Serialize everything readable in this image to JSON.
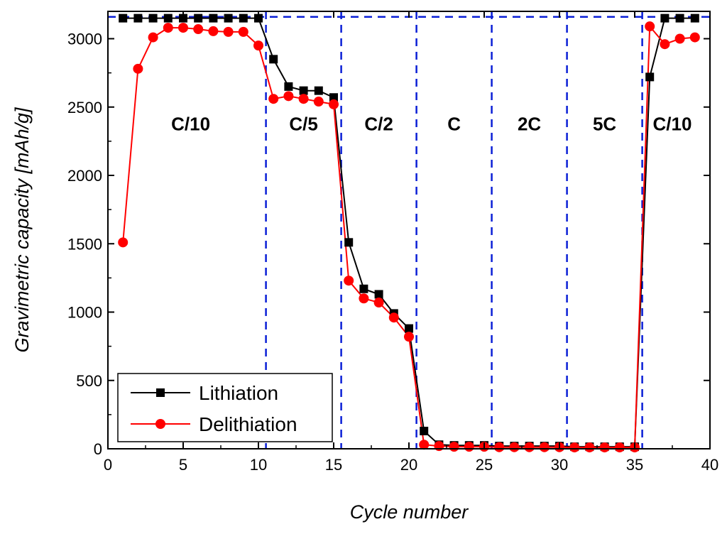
{
  "chart_data": {
    "type": "line",
    "xlabel": "Cycle number",
    "ylabel": "Gravimetric capacity [mAh/g]",
    "xlim": [
      0,
      40
    ],
    "ylim": [
      0,
      3200
    ],
    "xticks": [
      0,
      5,
      10,
      15,
      20,
      25,
      30,
      35,
      40
    ],
    "yticks": [
      0,
      500,
      1000,
      1500,
      2000,
      2500,
      3000
    ],
    "grid": false,
    "legend_position": "bottom-left",
    "reference_line_y": 3160,
    "section_boundaries": [
      10.5,
      15.5,
      20.5,
      25.5,
      30.5,
      35.5
    ],
    "rate_labels": [
      {
        "text": "C/10",
        "x": 5.5,
        "y": 2330
      },
      {
        "text": "C/5",
        "x": 13.0,
        "y": 2330
      },
      {
        "text": "C/2",
        "x": 18.0,
        "y": 2330
      },
      {
        "text": "C",
        "x": 23.0,
        "y": 2330
      },
      {
        "text": "2C",
        "x": 28.0,
        "y": 2330
      },
      {
        "text": "5C",
        "x": 33.0,
        "y": 2330
      },
      {
        "text": "C/10",
        "x": 37.5,
        "y": 2330
      }
    ],
    "series": [
      {
        "name": "Lithiation",
        "color": "#000000",
        "marker": "square",
        "x": [
          1,
          2,
          3,
          4,
          5,
          6,
          7,
          8,
          9,
          10,
          11,
          12,
          13,
          14,
          15,
          16,
          17,
          18,
          19,
          20,
          21,
          22,
          23,
          24,
          25,
          26,
          27,
          28,
          29,
          30,
          31,
          32,
          33,
          34,
          35,
          36,
          37,
          38,
          39
        ],
        "values": [
          3150,
          3150,
          3150,
          3150,
          3150,
          3150,
          3150,
          3150,
          3150,
          3150,
          2850,
          2650,
          2620,
          2620,
          2570,
          1510,
          1170,
          1130,
          990,
          880,
          130,
          30,
          25,
          25,
          25,
          20,
          20,
          20,
          20,
          20,
          15,
          15,
          15,
          15,
          15,
          2720,
          3150,
          3150,
          3150
        ]
      },
      {
        "name": "Delithiation",
        "color": "#ff0000",
        "marker": "circle",
        "x": [
          1,
          2,
          3,
          4,
          5,
          6,
          7,
          8,
          9,
          10,
          11,
          12,
          13,
          14,
          15,
          16,
          17,
          18,
          19,
          20,
          21,
          22,
          23,
          24,
          25,
          26,
          27,
          28,
          29,
          30,
          31,
          32,
          33,
          34,
          35,
          36,
          37,
          38,
          39
        ],
        "values": [
          1510,
          2780,
          3010,
          3080,
          3080,
          3070,
          3055,
          3050,
          3050,
          2950,
          2560,
          2580,
          2560,
          2540,
          2520,
          1230,
          1100,
          1070,
          960,
          820,
          30,
          20,
          15,
          15,
          15,
          12,
          12,
          12,
          12,
          12,
          10,
          10,
          10,
          10,
          10,
          3090,
          2960,
          3000,
          3010
        ]
      }
    ]
  }
}
